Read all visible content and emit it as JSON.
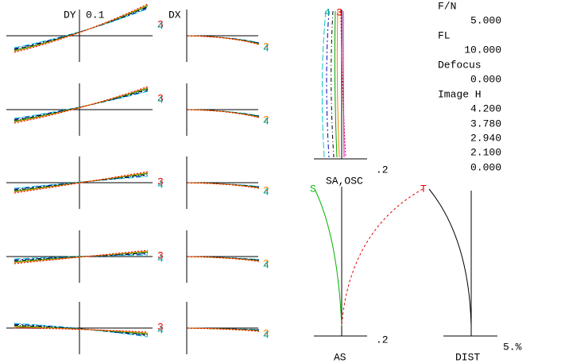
{
  "ray_fan": {
    "dy_label": "DY",
    "scale": "0.1",
    "dx_label": "DX",
    "curve_labels": [
      "4",
      "3",
      "2"
    ]
  },
  "spherical": {
    "label": "SA,OSC",
    "scale": ".2",
    "curve_labels": [
      "4",
      "3"
    ]
  },
  "astigmatism": {
    "label": "AS",
    "scale": ".2",
    "sagittal": "S",
    "tangential": "T"
  },
  "distortion": {
    "label": "DIST",
    "scale": "5.%"
  },
  "specs": [
    {
      "label": "F/N",
      "value": "5.000"
    },
    {
      "label": "FL",
      "value": "10.000"
    },
    {
      "label": "Defocus",
      "value": "0.000"
    }
  ],
  "image_height": {
    "label": "Image H",
    "values": [
      "4.200",
      "3.780",
      "2.940",
      "2.100",
      "0.000"
    ]
  }
}
